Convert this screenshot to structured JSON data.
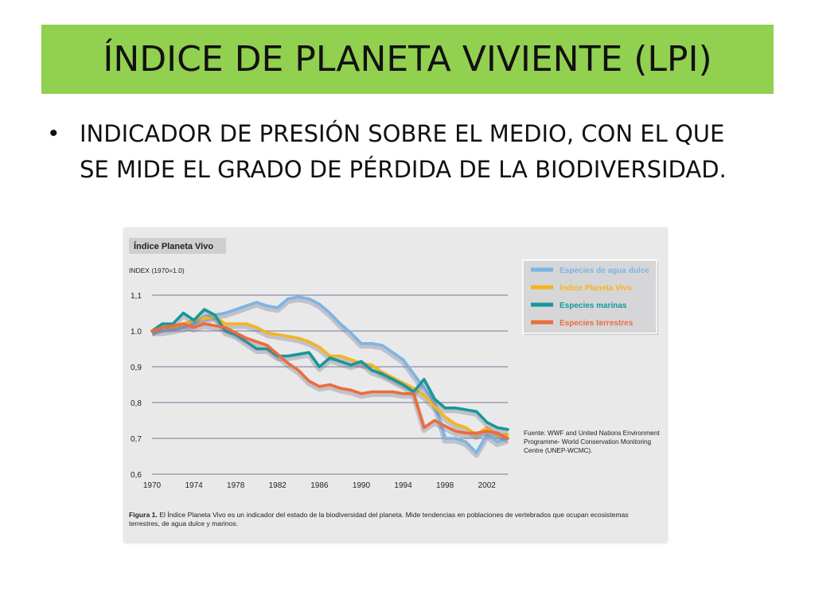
{
  "slide": {
    "title": "ÍNDICE DE PLANETA VIVIENTE (LPI)",
    "bullet": "INDICADOR DE PRESIÓN SOBRE EL MEDIO, CON EL QUE SE MIDE EL GRADO DE PÉRDIDA DE LA BIODIVERSIDAD."
  },
  "figure": {
    "caption_label": "Figura 1.",
    "caption_text": " El Índice Planeta Vivo es un indicador del estado de la biodiversidad del planeta. Mide tendencias en poblaciones de vertebrados que ocupan ecosistemas terrestres, de agua dulce y marinos.",
    "source": [
      "Fuente: WWF and United Nations Environment",
      "Programme- World Conservation Monitoring",
      "Centre (UNEP-WCMC)."
    ]
  },
  "chart_data": {
    "type": "line",
    "title": "Índice Planeta Vivo",
    "ylabel": "INDEX (1970=1.0)",
    "xlabel": "",
    "x_ticks": [
      "1970",
      "1974",
      "1978",
      "1982",
      "1986",
      "1990",
      "1994",
      "1998",
      "2002"
    ],
    "y_ticks": [
      "1,1",
      "1.0",
      "0,9",
      "0,8",
      "0,7",
      "0,6"
    ],
    "y_tick_values": [
      1.1,
      1.0,
      0.9,
      0.8,
      0.7,
      0.6
    ],
    "xlim": [
      1970,
      2004
    ],
    "ylim": [
      0.6,
      1.12
    ],
    "grid": "horizontal",
    "legend_position": "top-right",
    "series": [
      {
        "name": "Especies de agua dulce",
        "color": "#7cb4e6",
        "points": [
          [
            1970,
            1.0
          ],
          [
            1971,
            1.0
          ],
          [
            1972,
            1.005
          ],
          [
            1973,
            1.01
          ],
          [
            1974,
            1.02
          ],
          [
            1975,
            1.04
          ],
          [
            1976,
            1.045
          ],
          [
            1977,
            1.05
          ],
          [
            1978,
            1.06
          ],
          [
            1979,
            1.07
          ],
          [
            1980,
            1.08
          ],
          [
            1981,
            1.07
          ],
          [
            1982,
            1.065
          ],
          [
            1983,
            1.09
          ],
          [
            1984,
            1.095
          ],
          [
            1985,
            1.09
          ],
          [
            1986,
            1.075
          ],
          [
            1987,
            1.05
          ],
          [
            1988,
            1.02
          ],
          [
            1989,
            0.995
          ],
          [
            1990,
            0.965
          ],
          [
            1991,
            0.965
          ],
          [
            1992,
            0.96
          ],
          [
            1993,
            0.94
          ],
          [
            1994,
            0.92
          ],
          [
            1995,
            0.88
          ],
          [
            1996,
            0.84
          ],
          [
            1997,
            0.8
          ],
          [
            1998,
            0.7
          ],
          [
            1999,
            0.7
          ],
          [
            2000,
            0.69
          ],
          [
            2001,
            0.66
          ],
          [
            2002,
            0.71
          ],
          [
            2003,
            0.69
          ],
          [
            2004,
            0.7
          ]
        ]
      },
      {
        "name": "Índice Planeta Vivo",
        "color": "#f4b51d",
        "points": [
          [
            1970,
            1.0
          ],
          [
            1971,
            1.01
          ],
          [
            1972,
            1.01
          ],
          [
            1973,
            1.02
          ],
          [
            1974,
            1.03
          ],
          [
            1975,
            1.035
          ],
          [
            1976,
            1.04
          ],
          [
            1977,
            1.02
          ],
          [
            1978,
            1.02
          ],
          [
            1979,
            1.02
          ],
          [
            1980,
            1.01
          ],
          [
            1981,
            0.995
          ],
          [
            1982,
            0.99
          ],
          [
            1983,
            0.985
          ],
          [
            1984,
            0.98
          ],
          [
            1985,
            0.97
          ],
          [
            1986,
            0.955
          ],
          [
            1987,
            0.93
          ],
          [
            1988,
            0.93
          ],
          [
            1989,
            0.92
          ],
          [
            1990,
            0.91
          ],
          [
            1991,
            0.905
          ],
          [
            1992,
            0.885
          ],
          [
            1993,
            0.87
          ],
          [
            1994,
            0.855
          ],
          [
            1995,
            0.84
          ],
          [
            1996,
            0.82
          ],
          [
            1997,
            0.79
          ],
          [
            1998,
            0.76
          ],
          [
            1999,
            0.74
          ],
          [
            2000,
            0.73
          ],
          [
            2001,
            0.71
          ],
          [
            2002,
            0.73
          ],
          [
            2003,
            0.71
          ],
          [
            2004,
            0.71
          ]
        ]
      },
      {
        "name": "Especies marinas",
        "color": "#17979a",
        "points": [
          [
            1970,
            1.0
          ],
          [
            1971,
            1.02
          ],
          [
            1972,
            1.02
          ],
          [
            1973,
            1.05
          ],
          [
            1974,
            1.03
          ],
          [
            1975,
            1.06
          ],
          [
            1976,
            1.045
          ],
          [
            1977,
            1.0
          ],
          [
            1978,
            0.99
          ],
          [
            1979,
            0.97
          ],
          [
            1980,
            0.95
          ],
          [
            1981,
            0.95
          ],
          [
            1982,
            0.93
          ],
          [
            1983,
            0.93
          ],
          [
            1984,
            0.935
          ],
          [
            1985,
            0.94
          ],
          [
            1986,
            0.9
          ],
          [
            1987,
            0.925
          ],
          [
            1988,
            0.915
          ],
          [
            1989,
            0.905
          ],
          [
            1990,
            0.915
          ],
          [
            1991,
            0.89
          ],
          [
            1992,
            0.88
          ],
          [
            1993,
            0.865
          ],
          [
            1994,
            0.85
          ],
          [
            1995,
            0.83
          ],
          [
            1996,
            0.865
          ],
          [
            1997,
            0.81
          ],
          [
            1998,
            0.785
          ],
          [
            1999,
            0.785
          ],
          [
            2000,
            0.78
          ],
          [
            2001,
            0.775
          ],
          [
            2002,
            0.745
          ],
          [
            2003,
            0.73
          ],
          [
            2004,
            0.725
          ]
        ]
      },
      {
        "name": "Especies terrestres",
        "color": "#ec6c3d",
        "points": [
          [
            1970,
            1.0
          ],
          [
            1971,
            1.01
          ],
          [
            1972,
            1.015
          ],
          [
            1973,
            1.02
          ],
          [
            1974,
            1.01
          ],
          [
            1975,
            1.02
          ],
          [
            1976,
            1.015
          ],
          [
            1977,
            1.01
          ],
          [
            1978,
            0.995
          ],
          [
            1979,
            0.98
          ],
          [
            1980,
            0.97
          ],
          [
            1981,
            0.96
          ],
          [
            1982,
            0.935
          ],
          [
            1983,
            0.91
          ],
          [
            1984,
            0.89
          ],
          [
            1985,
            0.86
          ],
          [
            1986,
            0.845
          ],
          [
            1987,
            0.85
          ],
          [
            1988,
            0.84
          ],
          [
            1989,
            0.835
          ],
          [
            1990,
            0.825
          ],
          [
            1991,
            0.83
          ],
          [
            1992,
            0.83
          ],
          [
            1993,
            0.83
          ],
          [
            1994,
            0.825
          ],
          [
            1995,
            0.825
          ],
          [
            1996,
            0.73
          ],
          [
            1997,
            0.75
          ],
          [
            1998,
            0.735
          ],
          [
            1999,
            0.72
          ],
          [
            2000,
            0.715
          ],
          [
            2001,
            0.715
          ],
          [
            2002,
            0.72
          ],
          [
            2003,
            0.715
          ],
          [
            2004,
            0.7
          ]
        ]
      }
    ]
  }
}
